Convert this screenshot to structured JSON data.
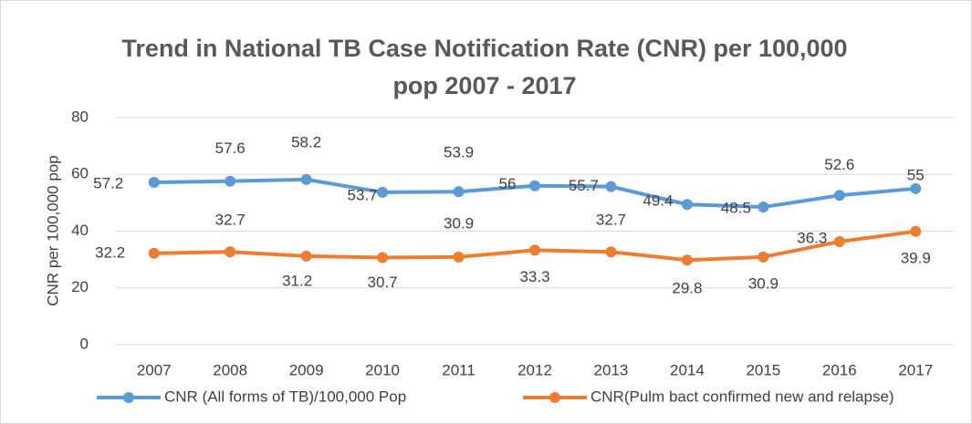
{
  "chart_data": {
    "type": "line",
    "title": "Trend in National TB Case Notification Rate (CNR) per 100,000 pop 2007 - 2017",
    "y_label": "CNR per 100,000 pop",
    "categories": [
      "2007",
      "2008",
      "2009",
      "2010",
      "2011",
      "2012",
      "2013",
      "2014",
      "2015",
      "2016",
      "2017"
    ],
    "series": [
      {
        "name": "CNR (All forms of TB)/100,000 Pop",
        "color": "#5b9bd5",
        "values": [
          57.2,
          57.6,
          58.2,
          53.7,
          53.9,
          56,
          55.7,
          49.4,
          48.5,
          52.6,
          55
        ]
      },
      {
        "name": "CNR(Pulm bact confirmed new and relapse)",
        "color": "#ed7d31",
        "values": [
          32.2,
          32.7,
          31.2,
          30.7,
          30.9,
          33.3,
          32.7,
          29.8,
          30.9,
          36.3,
          39.9
        ]
      }
    ],
    "ylim": [
      0,
      80
    ],
    "yticks": [
      0,
      20,
      40,
      60,
      80
    ],
    "grid": true,
    "legend": "bottom"
  }
}
